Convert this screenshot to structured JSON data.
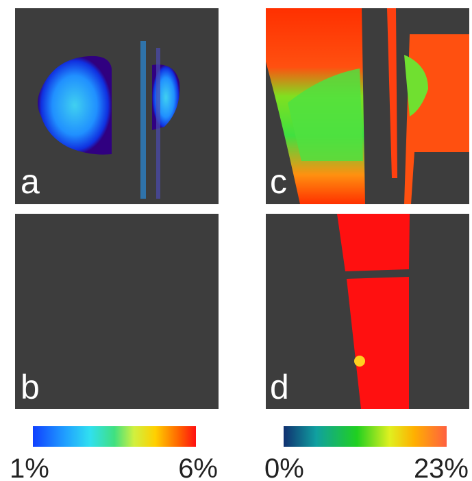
{
  "panels": [
    {
      "label": "a"
    },
    {
      "label": "b"
    },
    {
      "label": "c"
    },
    {
      "label": "d"
    }
  ],
  "colorbars": [
    {
      "min_label": "1%",
      "max_label": "6%"
    },
    {
      "min_label": "0%",
      "max_label": "23%"
    }
  ]
}
